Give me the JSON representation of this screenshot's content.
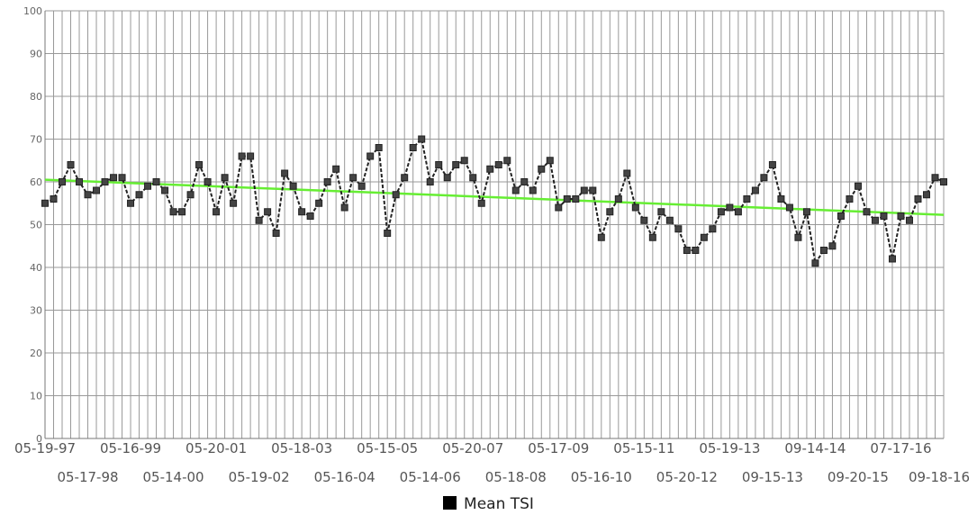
{
  "chart_data": {
    "type": "line",
    "ylim": [
      0,
      100
    ],
    "yticks": [
      0,
      10,
      20,
      30,
      40,
      50,
      60,
      70,
      80,
      90,
      100
    ],
    "grid": true,
    "legend_position": "bottom-center",
    "series": [
      {
        "name": "Mean TSI",
        "color": "#333333",
        "values": [
          55,
          56,
          60,
          64,
          60,
          57,
          58,
          60,
          61,
          61,
          55,
          57,
          59,
          60,
          58,
          53,
          53,
          57,
          64,
          60,
          53,
          61,
          55,
          66,
          66,
          51,
          53,
          48,
          62,
          59,
          53,
          52,
          55,
          60,
          63,
          54,
          61,
          59,
          66,
          68,
          48,
          57,
          61,
          68,
          70,
          60,
          64,
          61,
          64,
          65,
          61,
          55,
          63,
          64,
          65,
          58,
          60,
          58,
          63,
          65,
          54,
          56,
          56,
          58,
          58,
          47,
          53,
          56,
          62,
          54,
          51,
          47,
          53,
          51,
          49,
          44,
          44,
          47,
          49,
          53,
          54,
          53,
          56,
          58,
          61,
          64,
          56,
          54,
          47,
          53,
          41,
          44,
          45,
          52,
          56,
          59,
          53,
          51,
          52,
          42,
          52,
          51,
          56,
          57,
          61,
          60
        ]
      }
    ],
    "trendline": {
      "start": 60.5,
      "end": 52.3,
      "color": "#66ee33"
    },
    "x_labels_top": [
      "05-19-97",
      "05-16-99",
      "05-20-01",
      "05-18-03",
      "05-15-05",
      "05-20-07",
      "05-17-09",
      "05-15-11",
      "05-19-13",
      "09-14-14",
      "07-17-16"
    ],
    "x_labels_bottom": [
      "05-17-98",
      "05-14-00",
      "05-19-02",
      "05-16-04",
      "05-14-06",
      "05-18-08",
      "05-16-10",
      "05-20-12",
      "09-15-13",
      "09-20-15",
      "09-18-16"
    ]
  }
}
